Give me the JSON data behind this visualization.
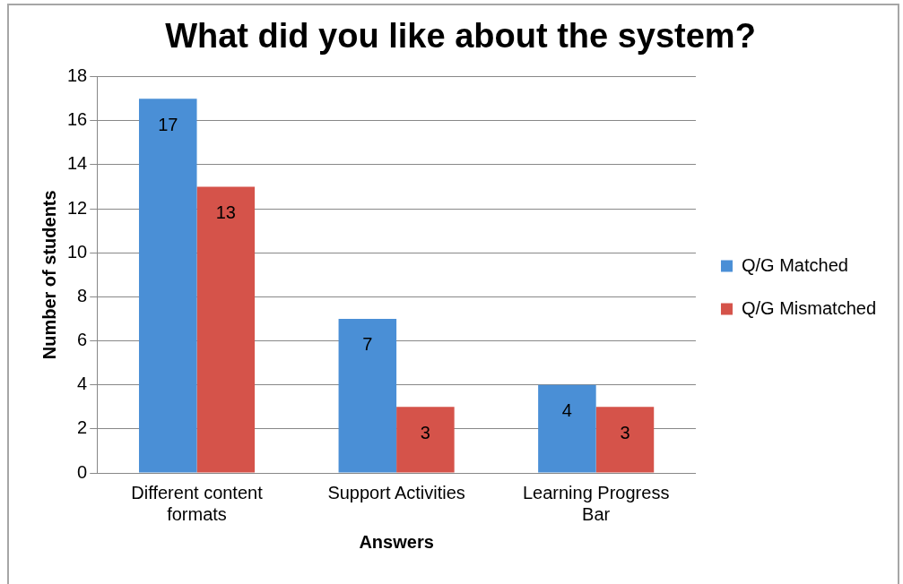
{
  "chart_data": {
    "type": "bar",
    "title": "What did you like about the system?",
    "xlabel": "Answers",
    "ylabel": "Number of students",
    "categories": [
      "Different content formats",
      "Support Activities",
      "Learning Progress Bar"
    ],
    "series": [
      {
        "name": "Q/G Matched",
        "color": "#4a8fd6",
        "values": [
          17,
          7,
          4
        ]
      },
      {
        "name": "Q/G Mismatched",
        "color": "#d5534a",
        "values": [
          13,
          3,
          3
        ]
      }
    ],
    "ylim": [
      0,
      18
    ],
    "yticks": [
      0,
      2,
      4,
      6,
      8,
      10,
      12,
      14,
      16,
      18
    ],
    "grid": "y",
    "legend": "right",
    "data_labels": true
  }
}
